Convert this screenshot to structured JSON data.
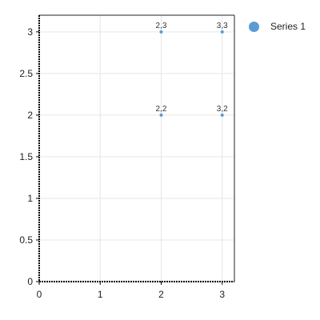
{
  "chart_data": {
    "type": "scatter",
    "title": "",
    "xlabel": "",
    "ylabel": "",
    "xlim": [
      0,
      3.2
    ],
    "ylim": [
      0,
      3.2
    ],
    "x_ticks": [
      0,
      1,
      2,
      3
    ],
    "x_tick_labels": [
      "0",
      "1",
      "2",
      "3"
    ],
    "y_ticks": [
      0,
      0.5,
      1,
      1.5,
      2,
      2.5,
      3
    ],
    "y_tick_labels": [
      "0",
      "0.5",
      "1",
      "1.5",
      "2",
      "2.5",
      "3"
    ],
    "grid": true,
    "legend_position": "top-right",
    "series": [
      {
        "name": "Series 1",
        "color": "#5b9bd5",
        "points": [
          {
            "x": 2,
            "y": 3,
            "label": "2,3"
          },
          {
            "x": 3,
            "y": 3,
            "label": "3,3"
          },
          {
            "x": 2,
            "y": 2,
            "label": "2,2"
          },
          {
            "x": 3,
            "y": 2,
            "label": "3,2"
          }
        ]
      }
    ]
  }
}
